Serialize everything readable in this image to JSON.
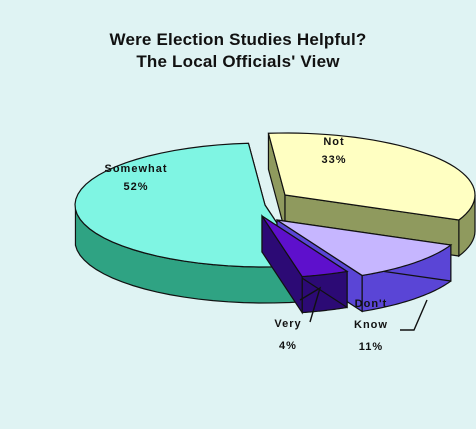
{
  "chart_data": {
    "type": "pie",
    "title": "Were Election Studies Helpful?",
    "subtitle": "The  Local Officials' View",
    "slices": [
      {
        "label": "Somewhat",
        "value": 52,
        "value_text": "52%",
        "color": "#7ff5e3",
        "side_color": "#2fa383"
      },
      {
        "label": "Not",
        "value": 33,
        "value_text": "33%",
        "color": "#ffffc2",
        "side_color": "#8f9a5e"
      },
      {
        "label": "Don't Know",
        "value": 11,
        "value_text": "11%",
        "color": "#c6b6ff",
        "side_color": "#5a45d6"
      },
      {
        "label": "Very",
        "value": 4,
        "value_text": "4%",
        "color": "#5e10cc",
        "side_color": "#2c0a75"
      }
    ],
    "legend": "none",
    "three_d": true,
    "background_color": "#dff3f3"
  }
}
